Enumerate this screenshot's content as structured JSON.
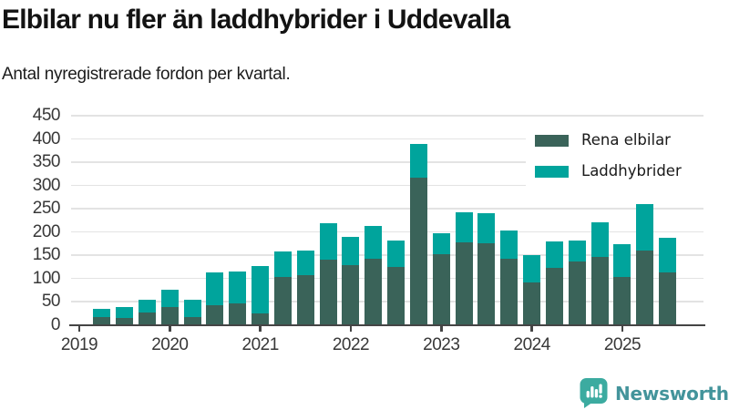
{
  "title": "Elbilar nu fler än laddhybrider i Uddevalla",
  "subtitle": "Antal nyregistrerade fordon per kvartal.",
  "colors": {
    "electric": "#3a6359",
    "hybrid": "#00a49c",
    "gridline": "#e3e3e3",
    "axis": "#454545",
    "tick_label": "#383838",
    "title": "#131313",
    "legend_bg": "#ffffff",
    "logo_bubble": "#3caba0",
    "logo_text": "#43949b"
  },
  "legend": {
    "items": [
      {
        "label": "Rena elbilar",
        "series_key": "electric"
      },
      {
        "label": "Laddhybrider",
        "series_key": "hybrid"
      }
    ]
  },
  "footer": {
    "brand": "Newsworthy"
  },
  "chart_data": {
    "type": "bar",
    "stacked": true,
    "title": "Elbilar nu fler än laddhybrider i Uddevalla",
    "subtitle": "Antal nyregistrerade fordon per kvartal.",
    "xlabel": "",
    "ylabel": "Antal nyregistrerade fordon",
    "ylim": [
      0,
      450
    ],
    "yticks": [
      0,
      50,
      100,
      150,
      200,
      250,
      300,
      350,
      400,
      450
    ],
    "xticks": [
      "2019",
      "2020",
      "2021",
      "2022",
      "2023",
      "2024",
      "2025"
    ],
    "grid": "horizontal",
    "legend_position": "top-right",
    "categories": [
      "2019-Q2",
      "2019-Q3",
      "2019-Q4",
      "2020-Q1",
      "2020-Q2",
      "2020-Q3",
      "2020-Q4",
      "2021-Q1",
      "2021-Q2",
      "2021-Q3",
      "2021-Q4",
      "2022-Q1",
      "2022-Q2",
      "2022-Q3",
      "2022-Q4",
      "2023-Q1",
      "2023-Q2",
      "2023-Q3",
      "2023-Q4",
      "2024-Q1",
      "2024-Q2",
      "2024-Q3",
      "2024-Q4",
      "2025-Q1",
      "2025-Q2",
      "2025-Q3"
    ],
    "series": [
      {
        "name": "Rena elbilar",
        "color": "#3a6359",
        "values": [
          17,
          14,
          26,
          38,
          17,
          43,
          46,
          25,
          102,
          107,
          141,
          128,
          143,
          125,
          317,
          151,
          177,
          175,
          143,
          91,
          123,
          136,
          147,
          102,
          160,
          112
        ]
      },
      {
        "name": "Laddhybrider",
        "color": "#00a49c",
        "values": [
          17,
          25,
          27,
          37,
          36,
          69,
          69,
          101,
          55,
          53,
          78,
          62,
          70,
          56,
          73,
          46,
          65,
          65,
          60,
          59,
          56,
          45,
          73,
          72,
          100,
          76
        ]
      }
    ]
  }
}
